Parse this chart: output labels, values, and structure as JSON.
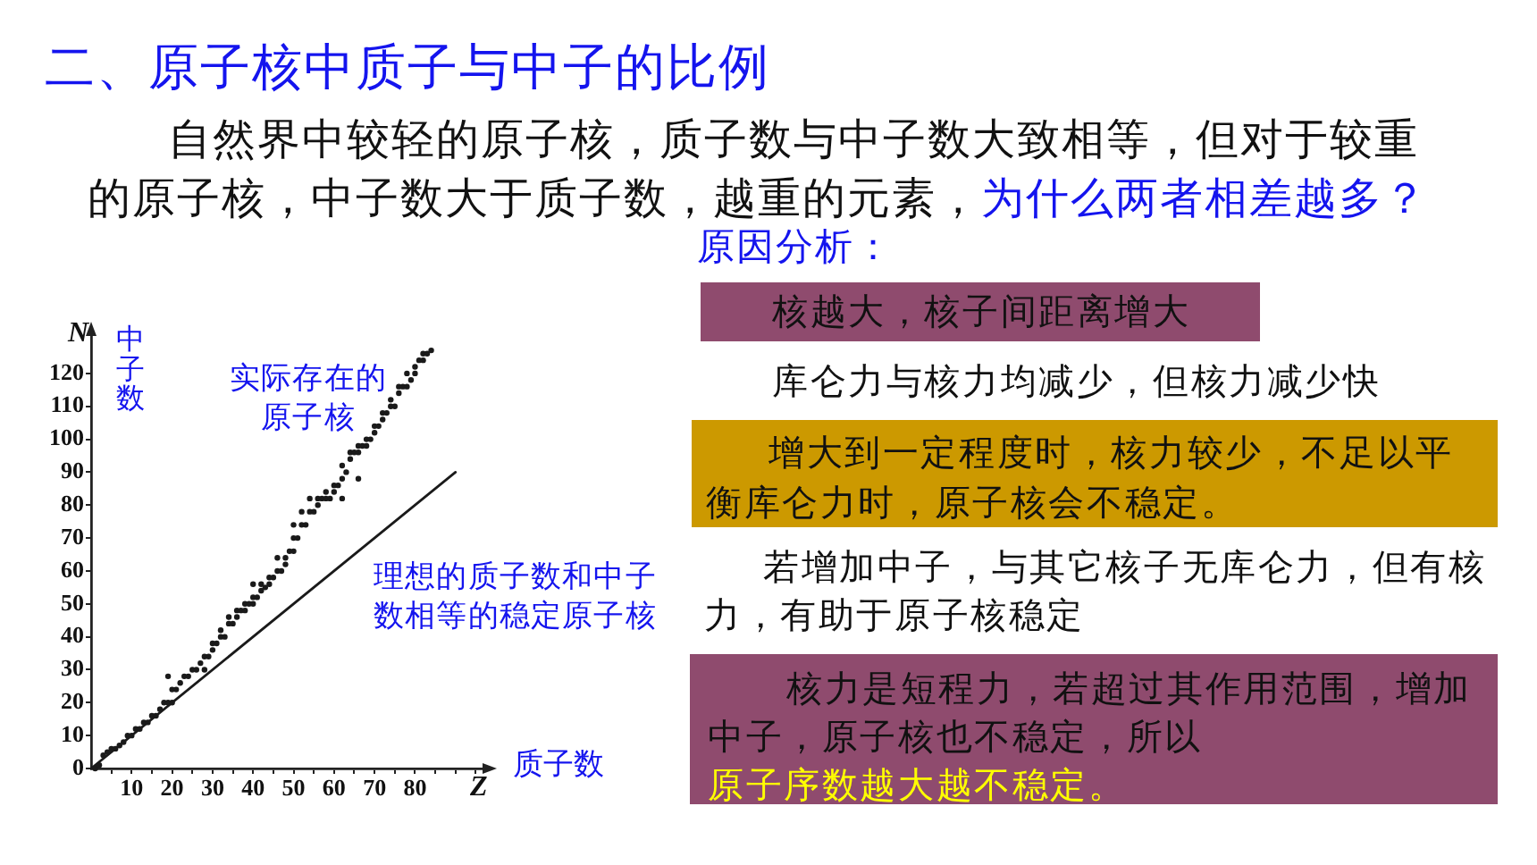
{
  "chart_data": {
    "type": "scatter",
    "title": "二、原子核中质子与中子的比例",
    "subtitle": "自然界中较轻的原子核，质子数与中子数大致相等，但对于较重的原子核，中子数大于质子数，越重的元素，",
    "xlabel": "Z",
    "ylabel": "N",
    "annotations": [
      "为什么两者相差越多？",
      "原因分析：",
      "核越大，核子间距离增大",
      "库仑力与核力均减少，但核力减少快",
      "增大到一定程度时，核力较少，不足以平衡库仑力时，原子核会不稳定。",
      "若增加中子，与其它核子无库仑力，但有核力，有助于原子核稳定",
      "核力是短程力，若超过其作用范围，增加中子，原子核也不稳定，所以",
      "原子序数越大越不稳定。",
      "中子数",
      "质子数"
    ],
    "series": [
      {
        "name": "实际存在的原子核",
        "type": "scatter",
        "color": "#1a1a1a",
        "marker": "circle",
        "x": [
          1,
          2,
          3,
          4,
          5,
          6,
          7,
          8,
          9,
          10,
          11,
          12,
          13,
          14,
          15,
          16,
          17,
          18,
          19,
          20,
          20,
          19,
          21,
          22,
          23,
          24,
          25,
          26,
          27,
          28,
          28,
          29,
          30,
          30,
          31,
          32,
          32,
          33,
          34,
          34,
          35,
          36,
          36,
          37,
          38,
          38,
          39,
          40,
          40,
          40,
          41,
          42,
          42,
          43,
          44,
          44,
          45,
          46,
          46,
          47,
          48,
          48,
          49,
          50,
          50,
          50,
          51,
          52,
          52,
          53,
          54,
          54,
          55,
          56,
          56,
          57,
          58,
          58,
          59,
          60,
          60,
          61,
          62,
          62,
          62,
          63,
          64,
          64,
          65,
          66,
          66,
          66,
          67,
          68,
          68,
          69,
          70,
          70,
          71,
          72,
          72,
          73,
          74,
          74,
          75,
          76,
          76,
          77,
          78,
          78,
          79,
          80,
          80,
          81,
          82,
          82,
          83,
          84
        ],
        "values": [
          0,
          1,
          4,
          5,
          6,
          6,
          7,
          8,
          10,
          10,
          12,
          12,
          14,
          14,
          16,
          16,
          18,
          20,
          20,
          20,
          24,
          28,
          24,
          26,
          28,
          28,
          30,
          30,
          32,
          30,
          34,
          34,
          36,
          38,
          38,
          40,
          42,
          40,
          44,
          46,
          44,
          48,
          46,
          48,
          50,
          48,
          50,
          52,
          50,
          56,
          52,
          54,
          56,
          55,
          58,
          56,
          58,
          60,
          64,
          60,
          64,
          62,
          66,
          66,
          70,
          74,
          70,
          74,
          78,
          74,
          78,
          82,
          78,
          82,
          80,
          82,
          82,
          84,
          82,
          84,
          86,
          86,
          88,
          92,
          82,
          90,
          94,
          96,
          96,
          96,
          98,
          88,
          98,
          100,
          98,
          100,
          104,
          102,
          104,
          106,
          108,
          108,
          110,
          112,
          110,
          114,
          116,
          116,
          116,
          120,
          118,
          120,
          122,
          124,
          124,
          126,
          126,
          127
        ]
      },
      {
        "name": "理想的质子数和中子数相等的稳定原子核",
        "type": "line",
        "color": "#1a1a1a",
        "x": [
          0,
          90
        ],
        "values": [
          0,
          90
        ]
      }
    ],
    "xlim": [
      0,
      98
    ],
    "ylim": [
      0,
      133
    ],
    "xticks": [
      {
        "value": 5,
        "label": null
      },
      10,
      {
        "value": 15,
        "label": null
      },
      20,
      {
        "value": 25,
        "label": null
      },
      30,
      {
        "value": 35,
        "label": null
      },
      40,
      {
        "value": 45,
        "label": null
      },
      50,
      {
        "value": 55,
        "label": null
      },
      60,
      {
        "value": 65,
        "label": null
      },
      70,
      {
        "value": 75,
        "label": null
      },
      80,
      {
        "value": 85,
        "label": null
      },
      {
        "value": 90,
        "label": null
      },
      {
        "value": 95,
        "label": null
      }
    ],
    "yticks": [
      0,
      10,
      20,
      30,
      40,
      50,
      60,
      70,
      80,
      90,
      100,
      110,
      120
    ]
  }
}
